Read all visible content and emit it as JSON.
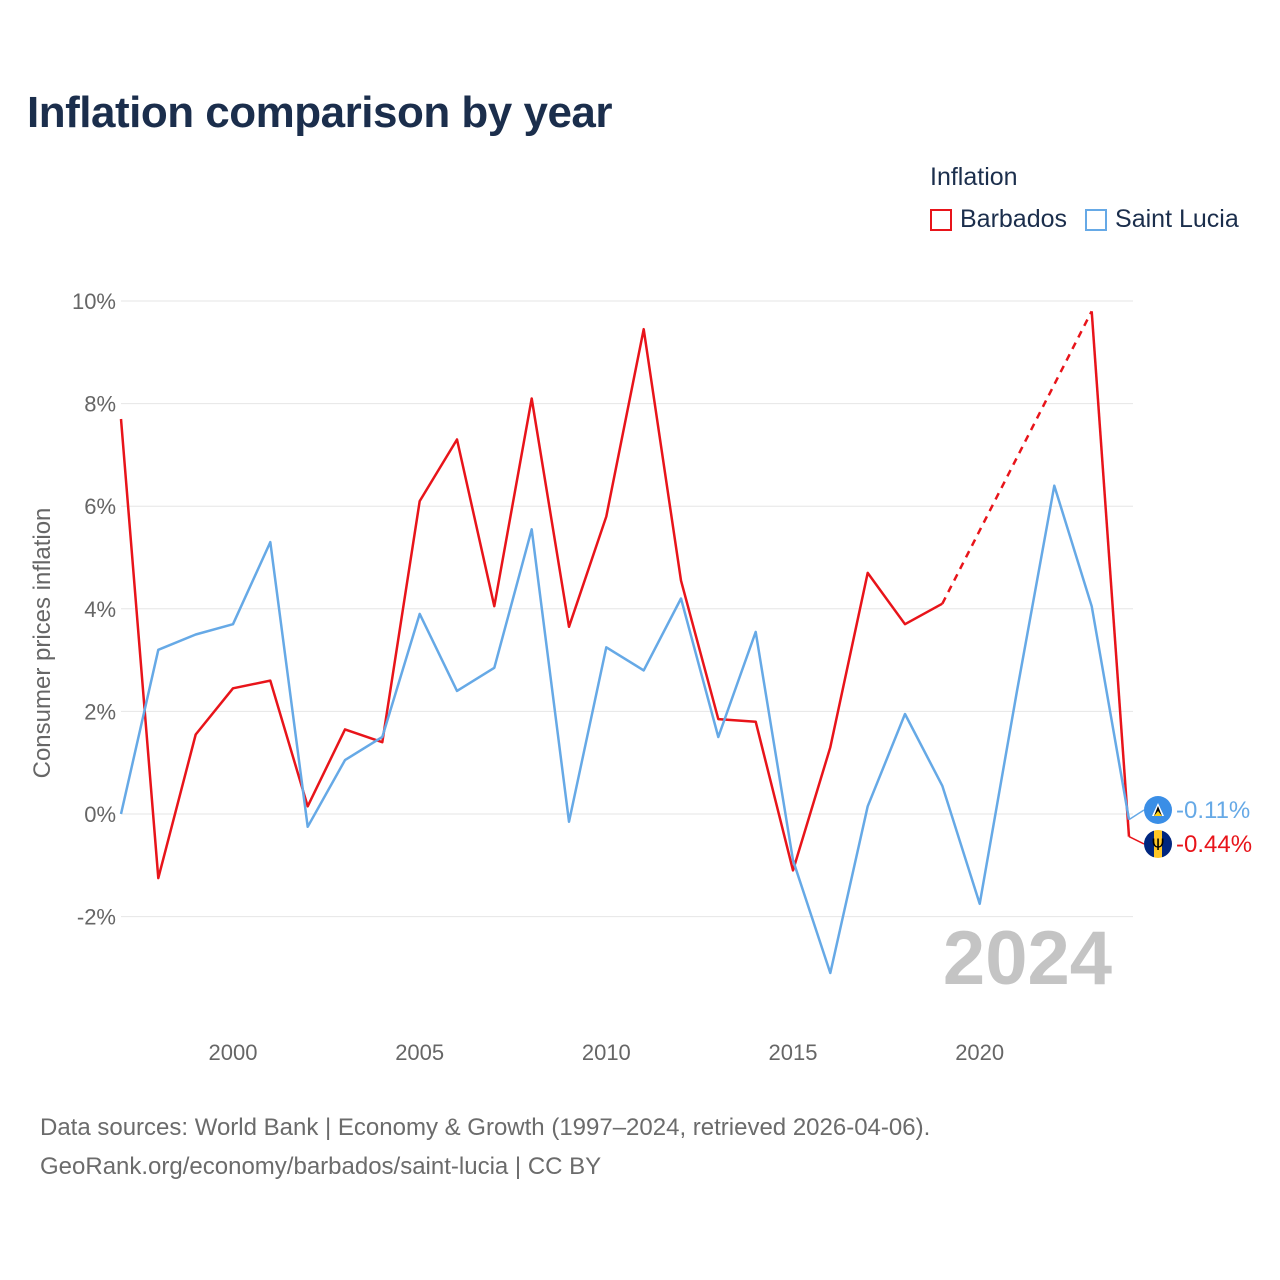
{
  "title": "Inflation comparison by year",
  "legend": {
    "title": "Inflation",
    "items": [
      {
        "label": "Barbados",
        "color": "#e8141a"
      },
      {
        "label": "Saint Lucia",
        "color": "#66a9e6"
      }
    ]
  },
  "footer": {
    "line1": "Data sources: World Bank | Economy & Growth (1997–2024, retrieved 2026-04-06).",
    "line2": "GeoRank.org/economy/barbados/saint-lucia | CC BY"
  },
  "chart_data": {
    "type": "line",
    "title": "Inflation comparison by year",
    "xlabel": "",
    "ylabel": "Consumer prices inflation",
    "xlim": [
      1997,
      2024
    ],
    "ylim": [
      -4,
      10
    ],
    "x_ticks": [
      2000,
      2005,
      2010,
      2015,
      2020
    ],
    "y_ticks": [
      -2,
      0,
      2,
      4,
      6,
      8,
      10
    ],
    "y_tick_labels": [
      "-2%",
      "0%",
      "2%",
      "4%",
      "6%",
      "8%",
      "10%"
    ],
    "grid": true,
    "year_marker": "2024",
    "series": [
      {
        "name": "Barbados",
        "color": "#e8141a",
        "end_label": "-0.44%",
        "flag_icon": "barbados-flag-icon",
        "points": [
          [
            1997,
            7.7
          ],
          [
            1998,
            -1.25
          ],
          [
            1999,
            1.55
          ],
          [
            2000,
            2.45
          ],
          [
            2001,
            2.6
          ],
          [
            2002,
            0.15
          ],
          [
            2003,
            1.65
          ],
          [
            2004,
            1.4
          ],
          [
            2005,
            6.1
          ],
          [
            2006,
            7.3
          ],
          [
            2007,
            4.05
          ],
          [
            2008,
            8.1
          ],
          [
            2009,
            3.65
          ],
          [
            2010,
            5.8
          ],
          [
            2011,
            9.45
          ],
          [
            2012,
            4.55
          ],
          [
            2013,
            1.85
          ],
          [
            2014,
            1.8
          ],
          [
            2015,
            -1.1
          ],
          [
            2016,
            1.3
          ],
          [
            2017,
            4.7
          ],
          [
            2018,
            3.7
          ],
          [
            2019,
            4.1
          ],
          [
            2023,
            9.8
          ],
          [
            2024,
            -0.44
          ]
        ],
        "dashed_gap": [
          2019,
          2023
        ]
      },
      {
        "name": "Saint Lucia",
        "color": "#66a9e6",
        "end_label": "-0.11%",
        "flag_icon": "saint-lucia-flag-icon",
        "points": [
          [
            1997,
            0.0
          ],
          [
            1998,
            3.2
          ],
          [
            1999,
            3.5
          ],
          [
            2000,
            3.7
          ],
          [
            2001,
            5.3
          ],
          [
            2002,
            -0.25
          ],
          [
            2003,
            1.05
          ],
          [
            2004,
            1.5
          ],
          [
            2005,
            3.9
          ],
          [
            2006,
            2.4
          ],
          [
            2007,
            2.85
          ],
          [
            2008,
            5.55
          ],
          [
            2009,
            -0.15
          ],
          [
            2010,
            3.25
          ],
          [
            2011,
            2.8
          ],
          [
            2012,
            4.2
          ],
          [
            2013,
            1.5
          ],
          [
            2014,
            3.55
          ],
          [
            2015,
            -0.9
          ],
          [
            2016,
            -3.1
          ],
          [
            2017,
            0.15
          ],
          [
            2018,
            1.95
          ],
          [
            2019,
            0.55
          ],
          [
            2020,
            -1.75
          ],
          [
            2021,
            2.4
          ],
          [
            2022,
            6.4
          ],
          [
            2023,
            4.05
          ],
          [
            2024,
            -0.11
          ]
        ]
      }
    ]
  }
}
